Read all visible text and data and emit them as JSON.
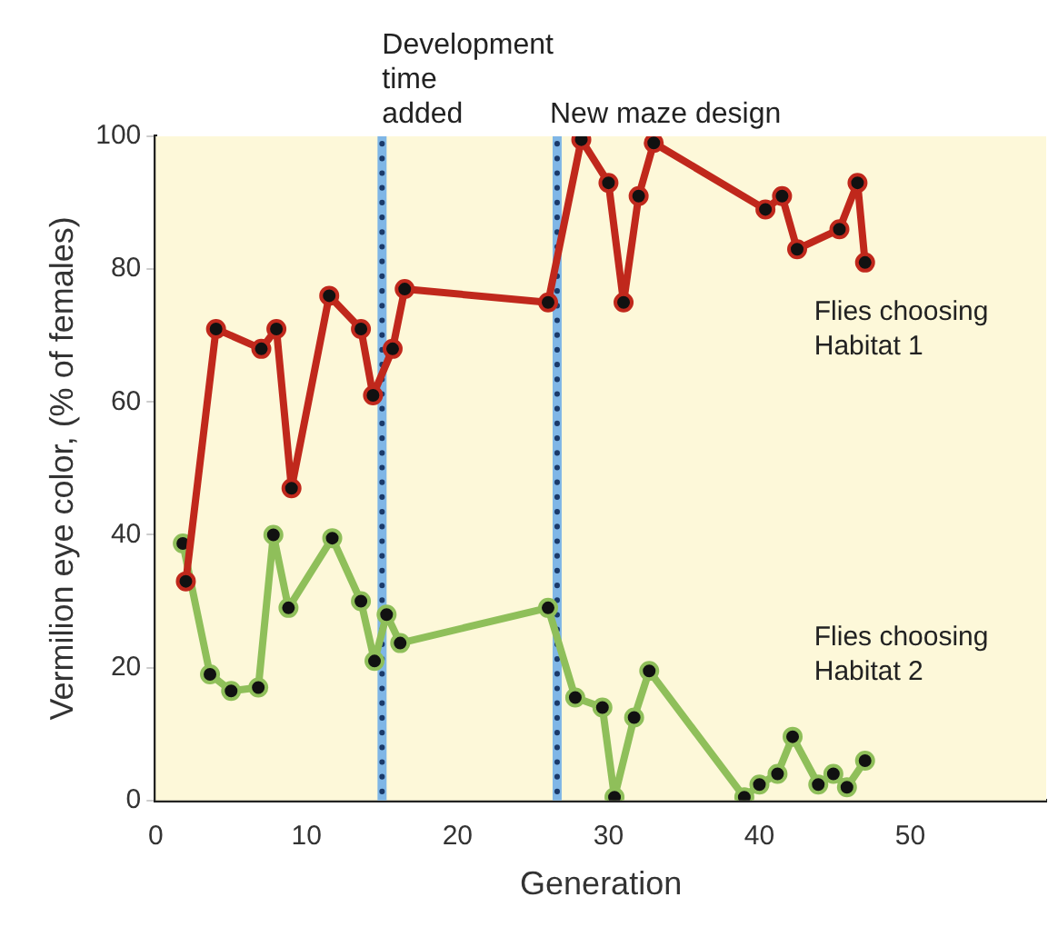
{
  "chart_data": {
    "type": "line",
    "xlabel": "Generation",
    "ylabel": "Vermilion eye color, (% of females)",
    "xlim": [
      0,
      59
    ],
    "xticks": [
      0,
      10,
      20,
      30,
      40,
      50
    ],
    "ylim": [
      0,
      100
    ],
    "yticks": [
      0,
      20,
      40,
      60,
      80,
      100
    ],
    "grid": false,
    "legend": false,
    "marker": "circle",
    "line_style": "solid",
    "series": [
      {
        "name": "Flies choosing Habitat 1",
        "color": "#c0281c",
        "x": [
          2,
          4,
          7,
          8,
          9,
          11.5,
          13.6,
          14.4,
          15.7,
          16.5,
          26,
          28.2,
          30,
          31,
          32,
          33,
          40.4,
          41.5,
          42.5,
          45.3,
          46.5,
          47
        ],
        "values": [
          33,
          71,
          68,
          71,
          47,
          76,
          71,
          61,
          68,
          77,
          75,
          99.5,
          93,
          75,
          91,
          99,
          89,
          91,
          83,
          86,
          93,
          81
        ]
      },
      {
        "name": "Flies choosing Habitat 2",
        "color": "#8fbf5a",
        "x": [
          1.8,
          3.6,
          5,
          6.8,
          7.8,
          8.8,
          11.7,
          13.6,
          14.5,
          15.3,
          16.2,
          26,
          27.8,
          29.6,
          30.4,
          31.7,
          32.7,
          39,
          40,
          41.2,
          42.2,
          43.9,
          44.9,
          45.8,
          47
        ],
        "values": [
          38.7,
          19,
          16.5,
          17,
          40,
          29,
          39.5,
          30,
          21,
          28,
          23.7,
          29,
          15.5,
          14,
          0.5,
          12.5,
          19.5,
          0.5,
          2.4,
          4,
          9.6,
          2.4,
          4,
          2,
          6
        ]
      }
    ],
    "ref_lines": [
      {
        "axis": "x",
        "value": 15,
        "label": "Development time added",
        "color": "#1a3a6a",
        "line_style": "dotted"
      },
      {
        "axis": "x",
        "value": 26.6,
        "label": "New maze design",
        "color": "#1a3a6a",
        "line_style": "dotted"
      }
    ],
    "bands": [
      {
        "axis": "x",
        "from": 14.7,
        "to": 15.3,
        "color": "#7fb6e6"
      },
      {
        "axis": "x",
        "from": 26.3,
        "to": 26.9,
        "color": "#7fb6e6"
      }
    ]
  }
}
